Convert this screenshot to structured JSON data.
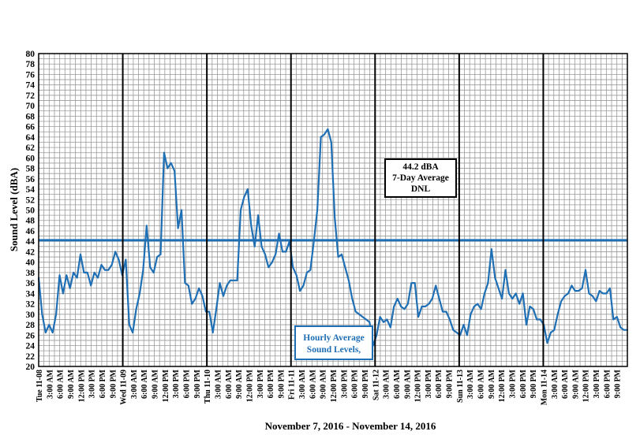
{
  "chart_data": {
    "type": "line",
    "xlabel": "November 7, 2016 - November 14, 2016",
    "ylabel": "Sound Level (dBA)",
    "ylim": [
      20,
      80
    ],
    "ytick_step": 2,
    "grid": true,
    "hours_total": 168,
    "day_labels": [
      "Tue 11-08",
      "Wed 11-09",
      "Thu 11-10",
      "Fri 11-11",
      "Sat 11-12",
      "Sun 11-13",
      "Mon 11-14"
    ],
    "hour_labels": [
      "3:00 AM",
      "6:00 AM",
      "9:00 AM",
      "12:00 PM",
      "3:00 PM",
      "6:00 PM",
      "9:00 PM"
    ],
    "series": [
      {
        "name": "Hourly Average Sound Levels,",
        "color": "#1f6fb5",
        "values": [
          37,
          30,
          26.5,
          28,
          26.5,
          30,
          37.5,
          34,
          37.5,
          35,
          38,
          37,
          41.5,
          38,
          38,
          35.5,
          38,
          37,
          39.5,
          38.5,
          38.5,
          39.5,
          42,
          40.5,
          37.5,
          40.5,
          28,
          26.5,
          31,
          34,
          38.5,
          47,
          39,
          38,
          41,
          41.5,
          61,
          58,
          59,
          57.5,
          46.5,
          50,
          36,
          35.5,
          32,
          33,
          35,
          33.5,
          30.5,
          30.5,
          26.5,
          31,
          36,
          33.5,
          35.5,
          36.5,
          36.5,
          36.5,
          50,
          52.5,
          54,
          47,
          43,
          49,
          43,
          41.5,
          39,
          40,
          41.5,
          45.5,
          42,
          42,
          44,
          39,
          37.5,
          34.5,
          35.5,
          38,
          38.5,
          44,
          50,
          64,
          64.5,
          65.5,
          63,
          48.5,
          41,
          41.5,
          39,
          36.5,
          33,
          30.5,
          30,
          29.5,
          29,
          28.5,
          24,
          26,
          29.5,
          28.5,
          29,
          27.5,
          31.5,
          33,
          31.5,
          31,
          32,
          36,
          36,
          29.5,
          31.5,
          31.5,
          32,
          33,
          35.5,
          33,
          30.5,
          30.5,
          29,
          27,
          26.5,
          26,
          28,
          26,
          30,
          31.5,
          32,
          31,
          34,
          36,
          42.5,
          37,
          35,
          33,
          38.5,
          34,
          33,
          34,
          32,
          34,
          28,
          31.5,
          31,
          29,
          29,
          28,
          24.5,
          26.5,
          27,
          30,
          32.5,
          33.5,
          34,
          35.5,
          34.5,
          34.5,
          35,
          38.5,
          34,
          33.5,
          32.5,
          34.5,
          34,
          34,
          35,
          29,
          29.5,
          27.5,
          27,
          27
        ]
      }
    ],
    "reference_line": {
      "value": 44.2,
      "color": "#1f6fb5"
    },
    "annotation_box": {
      "lines": [
        "44.2 dBA",
        "7-Day Average",
        "DNL"
      ]
    },
    "legend_box": {
      "lines": [
        "Hourly Average",
        "Sound Levels,"
      ]
    }
  }
}
